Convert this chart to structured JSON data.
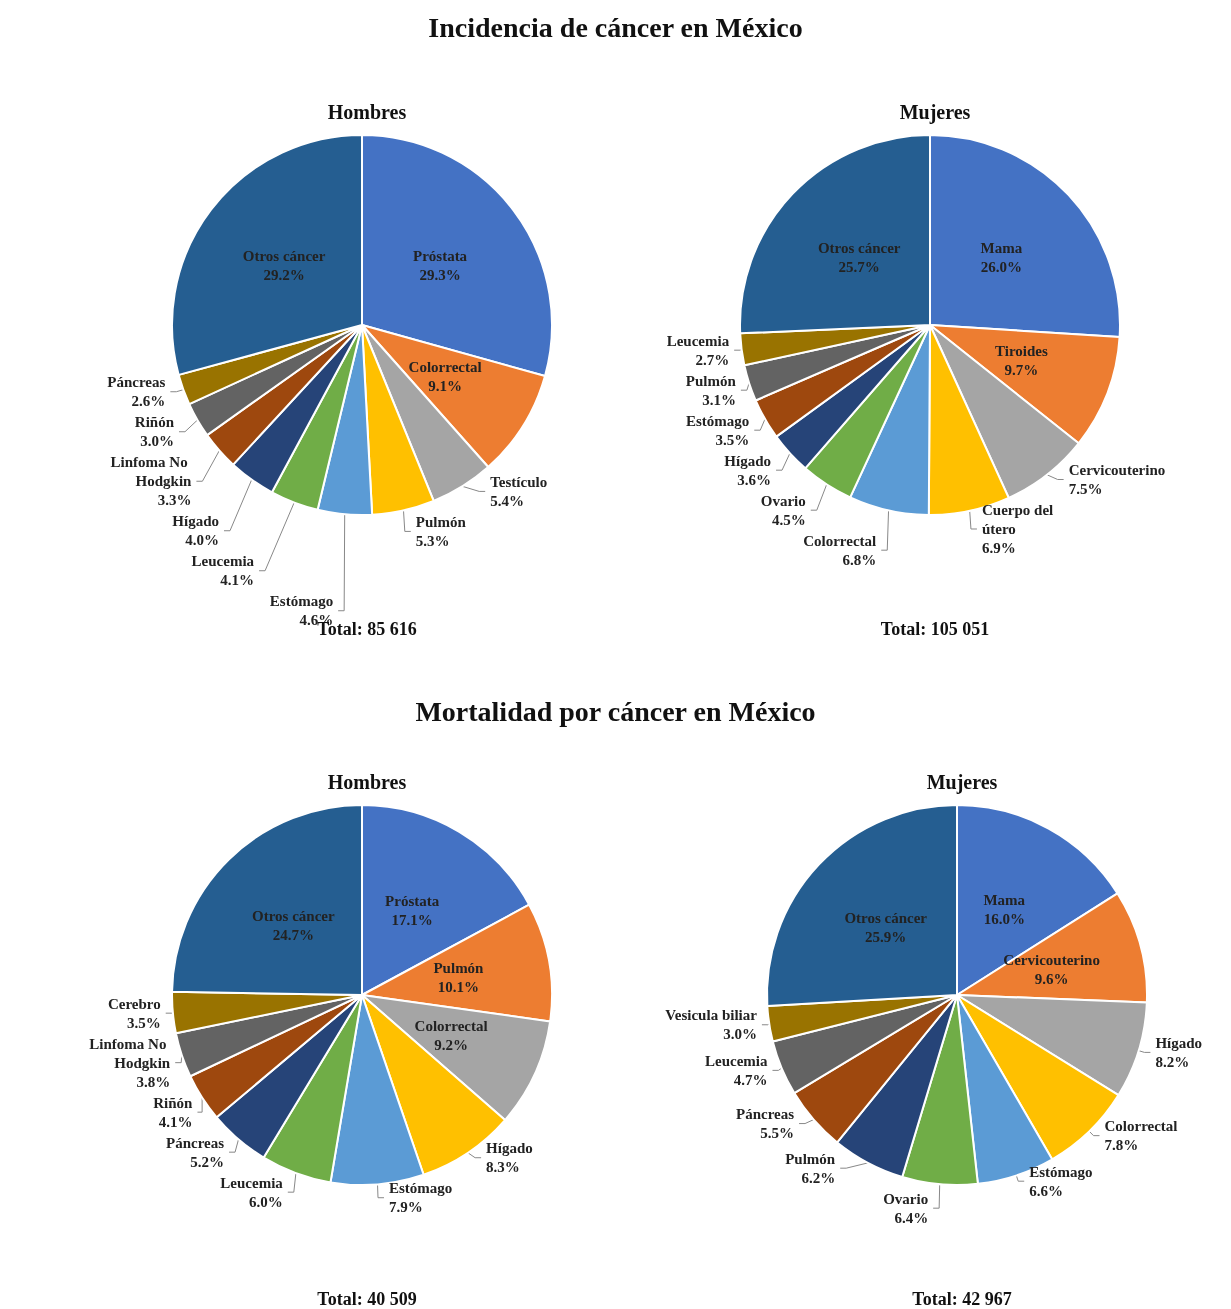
{
  "chart_data": [
    {
      "type": "pie",
      "title": "Incidencia de cáncer en México",
      "subtitle": "Hombres",
      "annotations": [
        "Total: 85 616"
      ],
      "value_labels": [
        "29.3%",
        "9.1%",
        "5.4%",
        "5.3%",
        "4.6%",
        "4.1%",
        "4.0%",
        "3.3%",
        "3.0%",
        "2.6%",
        "29.2%"
      ],
      "categories": [
        "Próstata",
        "Colorrectal",
        "Testículo",
        "Pulmón",
        "Estómago",
        "Leucemia",
        "Hígado",
        "Linfoma No Hodgkin",
        "Riñón",
        "Páncreas",
        "Otros cáncer"
      ],
      "values": [
        29.3,
        9.1,
        5.4,
        5.3,
        4.6,
        4.1,
        4.0,
        3.3,
        3.0,
        2.6,
        29.2
      ],
      "colors": [
        "#4472c4",
        "#ed7d31",
        "#a5a5a5",
        "#ffc000",
        "#5b9bd5",
        "#70ad47",
        "#264478",
        "#9e480e",
        "#636363",
        "#997300",
        "#255e91"
      ]
    },
    {
      "type": "pie",
      "subtitle": "Mujeres",
      "annotations": [
        "Total: 105 051"
      ],
      "value_labels": [
        "26.0%",
        "9.7%",
        "7.5%",
        "6.9%",
        "6.8%",
        "4.5%",
        "3.6%",
        "3.5%",
        "3.1%",
        "2.7%",
        "25.7%"
      ],
      "categories": [
        "Mama",
        "Tiroides",
        "Cervicouterino",
        "Cuerpo del útero",
        "Colorrectal",
        "Ovario",
        "Hígado",
        "Estómago",
        "Pulmón",
        "Leucemia",
        "Otros cáncer"
      ],
      "values": [
        26.0,
        9.7,
        7.5,
        6.9,
        6.8,
        4.5,
        3.6,
        3.5,
        3.1,
        2.7,
        25.7
      ],
      "colors": [
        "#4472c4",
        "#ed7d31",
        "#a5a5a5",
        "#ffc000",
        "#5b9bd5",
        "#70ad47",
        "#264478",
        "#9e480e",
        "#636363",
        "#997300",
        "#255e91"
      ]
    },
    {
      "type": "pie",
      "title": "Mortalidad por cáncer en México",
      "subtitle": "Hombres",
      "annotations": [
        "Total: 40 509"
      ],
      "value_labels": [
        "17.1%",
        "10.1%",
        "9.2%",
        "8.3%",
        "7.9%",
        "6.0%",
        "5.2%",
        "4.1%",
        "3.8%",
        "3.5%",
        "24.7%"
      ],
      "categories": [
        "Próstata",
        "Pulmón",
        "Colorrectal",
        "Hígado",
        "Estómago",
        "Leucemia",
        "Páncreas",
        "Riñón",
        "Linfoma No Hodgkin",
        "Cerebro",
        "Otros cáncer"
      ],
      "values": [
        17.1,
        10.1,
        9.2,
        8.3,
        7.9,
        6.0,
        5.2,
        4.1,
        3.8,
        3.5,
        24.7
      ],
      "colors": [
        "#4472c4",
        "#ed7d31",
        "#a5a5a5",
        "#ffc000",
        "#5b9bd5",
        "#70ad47",
        "#264478",
        "#9e480e",
        "#636363",
        "#997300",
        "#255e91"
      ]
    },
    {
      "type": "pie",
      "subtitle": "Mujeres",
      "annotations": [
        "Total: 42 967"
      ],
      "value_labels": [
        "16.0%",
        "9.6%",
        "8.2%",
        "7.8%",
        "6.6%",
        "6.4%",
        "6.2%",
        "5.5%",
        "4.7%",
        "3.0%",
        "25.9%"
      ],
      "categories": [
        "Mama",
        "Cervicouterino",
        "Hígado",
        "Colorrectal",
        "Estómago",
        "Ovario",
        "Pulmón",
        "Páncreas",
        "Leucemia",
        "Vesicula biliar",
        "Otros cáncer"
      ],
      "values": [
        16.0,
        9.6,
        8.2,
        7.8,
        6.6,
        6.4,
        6.2,
        5.5,
        4.7,
        3.0,
        25.9
      ],
      "colors": [
        "#4472c4",
        "#ed7d31",
        "#a5a5a5",
        "#ffc000",
        "#5b9bd5",
        "#70ad47",
        "#264478",
        "#9e480e",
        "#636363",
        "#997300",
        "#255e91"
      ]
    }
  ]
}
